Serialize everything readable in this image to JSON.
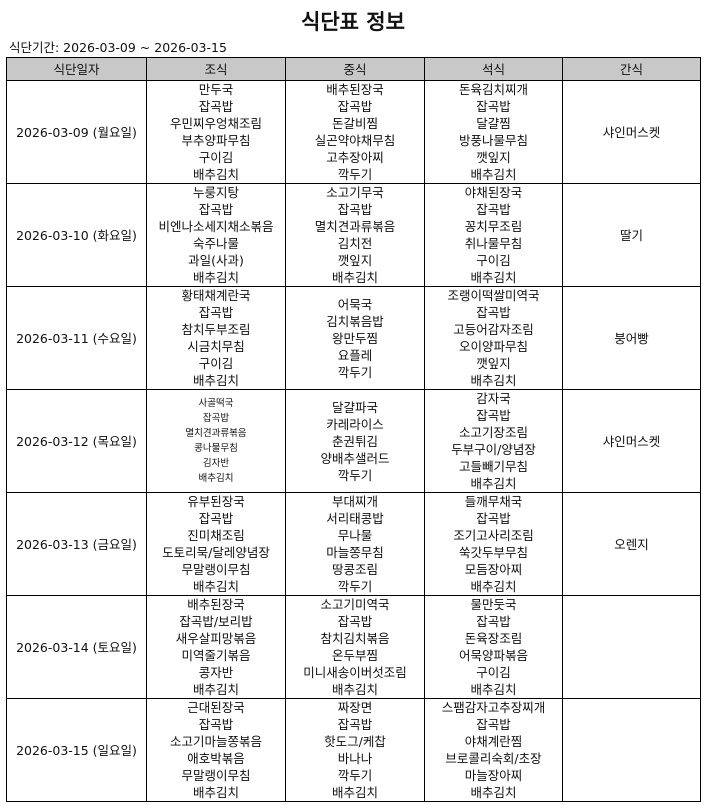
{
  "title": "식단표 정보",
  "period": "식단기간: 2026-03-09 ~ 2026-03-15",
  "columns": [
    "식단일자",
    "조식",
    "중식",
    "석식",
    "간식"
  ],
  "rows": [
    {
      "date": "2026-03-09 (월요일)",
      "breakfast": [
        "만두국",
        "잡곡밥",
        "우민찌우엉채조림",
        "부추양파무침",
        "구이김",
        "배추김치"
      ],
      "lunch": [
        "배추된장국",
        "잡곡밥",
        "돈갈비찜",
        "실곤약야채무침",
        "고추장아찌",
        "깍두기"
      ],
      "dinner": [
        "돈육김치찌개",
        "잡곡밥",
        "달걀찜",
        "방풍나물무침",
        "깻잎지",
        "배추김치"
      ],
      "snack": [
        "샤인머스켓"
      ]
    },
    {
      "date": "2026-03-10 (화요일)",
      "breakfast": [
        "누룽지탕",
        "잡곡밥",
        "비엔나소세지채소볶음",
        "숙주나물",
        "과일(사과)",
        "배추김치"
      ],
      "lunch": [
        "소고기무국",
        "잡곡밥",
        "멸치견과류볶음",
        "김치전",
        "깻잎지",
        "배추김치"
      ],
      "dinner": [
        "야채된장국",
        "잡곡밥",
        "꽁치무조림",
        "취나물무침",
        "구이김",
        "배추김치"
      ],
      "snack": [
        "딸기"
      ]
    },
    {
      "date": "2026-03-11 (수요일)",
      "breakfast": [
        "황태채계란국",
        "잡곡밥",
        "참치두부조림",
        "시금치무침",
        "구이김",
        "배추김치"
      ],
      "lunch": [
        "어묵국",
        "김치볶음밥",
        "왕만두찜",
        "요플레",
        "깍두기"
      ],
      "dinner": [
        "조랭이떡쌀미역국",
        "잡곡밥",
        "고등어감자조림",
        "오이양파무침",
        "깻잎지",
        "배추김치"
      ],
      "snack": [
        "붕어빵"
      ]
    },
    {
      "date": "2026-03-12 (목요일)",
      "breakfast": [
        "사골떡국",
        "잡곡밥",
        "멸치견과류볶음",
        "콩나물무침",
        "김자반",
        "배추김치"
      ],
      "breakfast_small": true,
      "lunch": [
        "달걀파국",
        "카레라이스",
        "춘권튀김",
        "양배추샐러드",
        "깍두기"
      ],
      "dinner": [
        "감자국",
        "잡곡밥",
        "소고기장조림",
        "두부구이/양념장",
        "고들빼기무침",
        "배추김치"
      ],
      "snack": [
        "샤인머스켓"
      ]
    },
    {
      "date": "2026-03-13 (금요일)",
      "breakfast": [
        "유부된장국",
        "잡곡밥",
        "진미채조림",
        "도토리묵/달레양념장",
        "무말랭이무침",
        "배추김치"
      ],
      "lunch": [
        "부대찌개",
        "서리태콩밥",
        "무나물",
        "마늘쫑무침",
        "땅콩조림",
        "깍두기"
      ],
      "dinner": [
        "들깨무채국",
        "잡곡밥",
        "조기고사리조림",
        "쑥갓두부무침",
        "모듬장아찌",
        "배추김치"
      ],
      "snack": [
        "오렌지"
      ]
    },
    {
      "date": "2026-03-14 (토요일)",
      "breakfast": [
        "배추된장국",
        "잡곡밥/보리밥",
        "새우살피망볶음",
        "미역줄기볶음",
        "콩자반",
        "배추김치"
      ],
      "lunch": [
        "소고기미역국",
        "잡곡밥",
        "참치김치볶음",
        "온두부찜",
        "미니새송이버섯조림",
        "배추김치"
      ],
      "dinner": [
        "물만둣국",
        "잡곡밥",
        "돈육장조림",
        "어묵양파볶음",
        "구이김",
        "배추김치"
      ],
      "snack": []
    },
    {
      "date": "2026-03-15 (일요일)",
      "breakfast": [
        "근대된장국",
        "잡곡밥",
        "소고기마늘쫑볶음",
        "애호박볶음",
        "무말랭이무침",
        "배추김치"
      ],
      "lunch": [
        "짜장면",
        "잡곡밥",
        "핫도그/케찹",
        "바나나",
        "깍두기",
        "배추김치"
      ],
      "dinner": [
        "스팸감자고추장찌개",
        "잡곡밥",
        "야채계란찜",
        "브로콜리숙회/초장",
        "마늘장아찌",
        "배추김치"
      ],
      "snack": []
    }
  ]
}
